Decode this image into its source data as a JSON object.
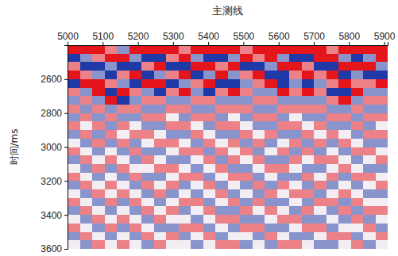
{
  "chart_data": {
    "type": "heatmap",
    "title": "主测线",
    "y_label": "时间/ms",
    "xlim": [
      5000,
      5910
    ],
    "ylim": [
      2400,
      3600
    ],
    "xticks": [
      5000,
      5100,
      5200,
      5300,
      5400,
      5500,
      5600,
      5700,
      5800,
      5900
    ],
    "yticks": [
      2600,
      2800,
      3000,
      3200,
      3400,
      3600
    ],
    "zlim": [
      -2,
      2
    ],
    "xbins": [
      5000,
      5035,
      5070,
      5105,
      5140,
      5175,
      5210,
      5245,
      5280,
      5315,
      5350,
      5385,
      5420,
      5455,
      5490,
      5525,
      5560,
      5595,
      5630,
      5665,
      5700,
      5735,
      5770,
      5805,
      5840,
      5875,
      5910
    ],
    "ybins": [
      2400,
      2450,
      2500,
      2550,
      2600,
      2650,
      2700,
      2750,
      2800,
      2850,
      2900,
      2950,
      3000,
      3050,
      3100,
      3150,
      3200,
      3250,
      3300,
      3350,
      3400,
      3450,
      3500,
      3550,
      3600
    ],
    "cells": [
      [
        2,
        2,
        2,
        1,
        -1,
        2,
        2,
        2,
        2,
        1,
        2,
        2,
        2,
        2,
        1,
        2,
        2,
        2,
        2,
        2,
        2,
        1,
        2,
        2,
        2,
        2
      ],
      [
        -2,
        -1,
        1,
        2,
        2,
        -1,
        -2,
        -2,
        1,
        2,
        -1,
        -2,
        -2,
        -1,
        2,
        1,
        2,
        -1,
        -2,
        -2,
        2,
        2,
        -1,
        -2,
        -1,
        2
      ],
      [
        1,
        -2,
        -2,
        -1,
        -2,
        -2,
        1,
        2,
        -2,
        -2,
        2,
        2,
        1,
        2,
        -2,
        -2,
        -1,
        2,
        2,
        1,
        -2,
        -2,
        2,
        2,
        2,
        -1
      ],
      [
        2,
        1,
        -1,
        -2,
        1,
        2,
        -2,
        -1,
        1,
        2,
        -2,
        -1,
        2,
        -1,
        1,
        2,
        -2,
        -2,
        1,
        2,
        1,
        2,
        -2,
        -1,
        -2,
        -2
      ],
      [
        -2,
        2,
        2,
        1,
        -1,
        -2,
        2,
        2,
        -2,
        -1,
        1,
        2,
        -2,
        -2,
        -1,
        1,
        2,
        -2,
        -1,
        -2,
        -1,
        1,
        2,
        1,
        1,
        2
      ],
      [
        1,
        -1,
        2,
        -2,
        2,
        1,
        -1,
        -2,
        1,
        2,
        -1,
        -2,
        1,
        2,
        1,
        -1,
        -1,
        2,
        1,
        2,
        1,
        -2,
        -2,
        2,
        -1,
        -1
      ],
      [
        -1,
        1,
        -1,
        2,
        -2,
        -1,
        1,
        1,
        -1,
        -1,
        1,
        1,
        -1,
        -1,
        -1,
        1,
        1,
        -1,
        -1,
        -1,
        -1,
        1,
        2,
        -1,
        1,
        1
      ],
      [
        1,
        -1,
        1,
        -1,
        1,
        1,
        -1,
        -1,
        1,
        1,
        -1,
        -1,
        1,
        1,
        1,
        -1,
        -1,
        1,
        1,
        1,
        1,
        -1,
        -1,
        1,
        -1,
        -1
      ],
      [
        -1,
        1,
        -1,
        1,
        -1,
        -1,
        1,
        1,
        0,
        -1,
        1,
        1,
        -1,
        0,
        -1,
        1,
        1,
        -1,
        0,
        -1,
        -1,
        1,
        1,
        -1,
        1,
        1
      ],
      [
        1,
        0,
        1,
        -1,
        1,
        0,
        -1,
        -1,
        1,
        1,
        0,
        -1,
        1,
        1,
        0,
        -1,
        -1,
        1,
        1,
        0,
        1,
        -1,
        -1,
        1,
        -1,
        0
      ],
      [
        -1,
        1,
        -1,
        1,
        0,
        1,
        1,
        0,
        -1,
        -1,
        1,
        0,
        -1,
        -1,
        1,
        0,
        1,
        -1,
        -1,
        1,
        0,
        1,
        0,
        -1,
        1,
        1
      ],
      [
        0,
        -1,
        1,
        -1,
        1,
        -1,
        0,
        1,
        1,
        0,
        -1,
        1,
        0,
        1,
        -1,
        1,
        -1,
        0,
        1,
        -1,
        1,
        -1,
        1,
        0,
        -1,
        -1
      ],
      [
        1,
        0,
        -1,
        0,
        -1,
        1,
        -1,
        -1,
        0,
        1,
        1,
        -1,
        1,
        0,
        1,
        -1,
        0,
        1,
        -1,
        1,
        -1,
        0,
        -1,
        1,
        1,
        0
      ],
      [
        -1,
        1,
        0,
        1,
        0,
        -1,
        1,
        0,
        -1,
        -1,
        0,
        1,
        -1,
        1,
        0,
        1,
        -1,
        -1,
        1,
        0,
        1,
        1,
        0,
        -1,
        0,
        1
      ],
      [
        0,
        -1,
        1,
        -1,
        1,
        0,
        0,
        1,
        1,
        0,
        -1,
        0,
        1,
        -1,
        -1,
        0,
        1,
        1,
        0,
        -1,
        -1,
        0,
        1,
        0,
        -1,
        -1
      ],
      [
        1,
        0,
        -1,
        0,
        -1,
        1,
        -1,
        -1,
        0,
        1,
        1,
        -1,
        0,
        1,
        1,
        -1,
        0,
        -1,
        -1,
        1,
        0,
        1,
        -1,
        1,
        1,
        0
      ],
      [
        -1,
        1,
        0,
        1,
        0,
        -1,
        1,
        0,
        1,
        -1,
        0,
        1,
        -1,
        0,
        -1,
        1,
        -1,
        1,
        0,
        -1,
        1,
        -1,
        0,
        -1,
        0,
        1
      ],
      [
        0,
        -1,
        1,
        0,
        1,
        0,
        -1,
        1,
        -1,
        0,
        -1,
        0,
        1,
        -1,
        0,
        -1,
        1,
        0,
        1,
        1,
        -1,
        0,
        1,
        0,
        -1,
        -1
      ],
      [
        1,
        0,
        -1,
        1,
        -1,
        1,
        0,
        -1,
        0,
        1,
        1,
        -1,
        0,
        1,
        -1,
        1,
        -1,
        -1,
        0,
        -1,
        1,
        1,
        -1,
        1,
        0,
        0
      ],
      [
        -1,
        1,
        0,
        -1,
        0,
        -1,
        1,
        0,
        1,
        -1,
        0,
        1,
        -1,
        -1,
        1,
        0,
        1,
        0,
        -1,
        1,
        0,
        -1,
        1,
        -1,
        1,
        1
      ],
      [
        0,
        -1,
        1,
        0,
        1,
        0,
        -1,
        1,
        0,
        0,
        -1,
        0,
        1,
        1,
        -1,
        -1,
        0,
        1,
        1,
        -1,
        -1,
        0,
        -1,
        1,
        -1,
        0
      ],
      [
        1,
        0,
        -1,
        1,
        -1,
        1,
        0,
        -1,
        -1,
        1,
        1,
        -1,
        0,
        -1,
        1,
        1,
        -1,
        -1,
        0,
        1,
        1,
        -1,
        0,
        0,
        1,
        -1
      ],
      [
        -1,
        1,
        0,
        -1,
        0,
        -1,
        1,
        0,
        1,
        -1,
        0,
        1,
        -1,
        0,
        0,
        -1,
        1,
        0,
        -1,
        -1,
        0,
        1,
        1,
        -1,
        0,
        1
      ],
      [
        0,
        -1,
        1,
        0,
        1,
        0,
        -1,
        1,
        0,
        0,
        -1,
        0,
        1,
        1,
        -1,
        0,
        -1,
        1,
        1,
        0,
        -1,
        -1,
        0,
        1,
        -1,
        0
      ]
    ]
  }
}
